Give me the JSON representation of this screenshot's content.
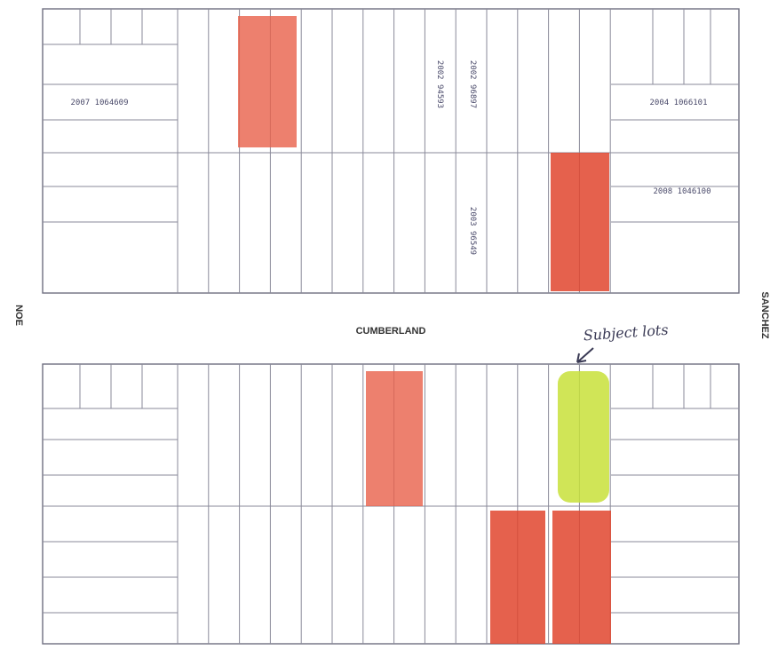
{
  "streets": {
    "center": "CUMBERLAND",
    "left": "NOE",
    "right": "SANCHEZ"
  },
  "annotation": "Subject lots",
  "doc_numbers": [
    "2007 1064609",
    "2004 1066101",
    "2008 1046100",
    "2002 96897",
    "2002 94593",
    "2003 96549"
  ]
}
